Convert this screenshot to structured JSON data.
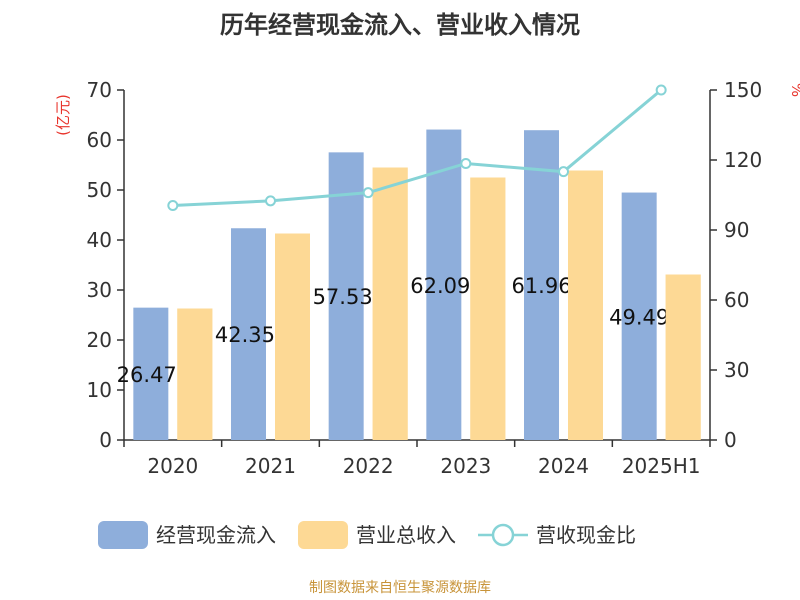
{
  "chart_data": {
    "type": "bar",
    "title": "历年经营现金流入、营业收入情况",
    "categories": [
      "2020",
      "2021",
      "2022",
      "2023",
      "2024",
      "2025H1"
    ],
    "series": [
      {
        "name": "经营现金流入",
        "kind": "bar",
        "axis": "left",
        "color": "#8eaedb",
        "values": [
          26.47,
          42.35,
          57.53,
          62.09,
          61.96,
          49.49
        ],
        "labels": [
          "26.47(",
          "42.35:",
          "57.53:",
          "62.09:",
          "61.96",
          "49.49"
        ]
      },
      {
        "name": "营业总收入",
        "kind": "bar",
        "axis": "left",
        "color": "#fdd995",
        "values": [
          26.3,
          41.3,
          54.5,
          52.5,
          53.9,
          33.1
        ]
      },
      {
        "name": "营收现金比",
        "kind": "line",
        "axis": "right",
        "color": "#86d3d6",
        "values": [
          100.5,
          102.5,
          106,
          118.5,
          115,
          150
        ]
      }
    ],
    "y_left": {
      "unit": "(亿元)",
      "min": 0,
      "max": 70,
      "ticks": [
        0,
        10,
        20,
        30,
        40,
        50,
        60,
        70
      ]
    },
    "y_right": {
      "unit": "%",
      "min": 0,
      "max": 150,
      "ticks": [
        0,
        30,
        60,
        90,
        120,
        150
      ]
    },
    "legend_position": "bottom",
    "source": "制图数据来自恒生聚源数据库"
  }
}
